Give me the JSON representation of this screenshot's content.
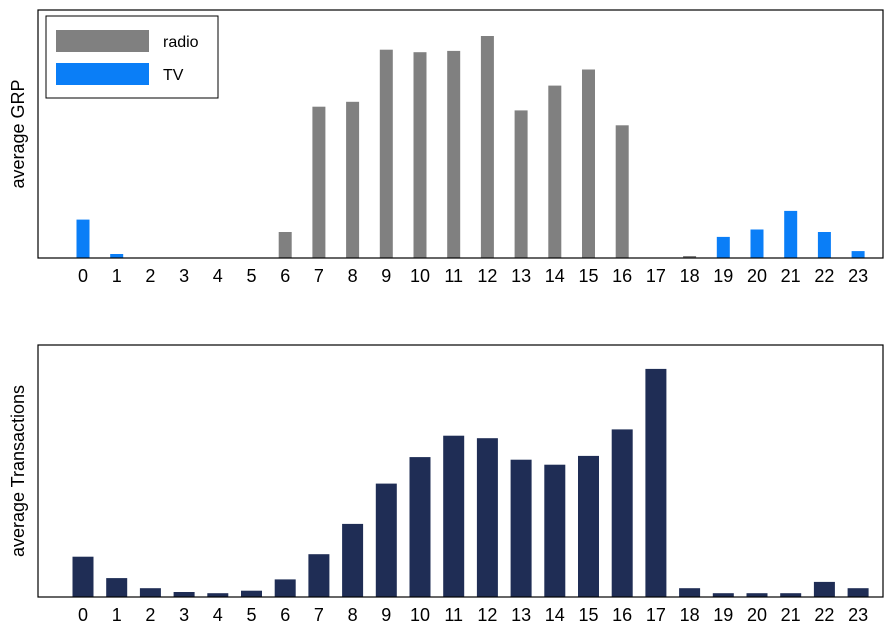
{
  "chart_data": [
    {
      "type": "bar",
      "title": "",
      "xlabel": "",
      "ylabel": "average GRP",
      "categories": [
        "0",
        "1",
        "2",
        "3",
        "4",
        "5",
        "6",
        "7",
        "8",
        "9",
        "10",
        "11",
        "12",
        "13",
        "14",
        "15",
        "16",
        "17",
        "18",
        "19",
        "20",
        "21",
        "22",
        "23"
      ],
      "ylim": [
        0,
        100
      ],
      "legend_position": "top-left",
      "grid": false,
      "series": [
        {
          "name": "radio",
          "color": "#808080",
          "values": [
            0,
            0,
            0,
            0,
            0,
            0,
            10.5,
            61,
            63,
            84,
            83,
            83.5,
            89.5,
            59.5,
            69.5,
            76,
            53.5,
            0,
            0.8,
            0,
            0,
            0,
            0,
            0
          ]
        },
        {
          "name": "TV",
          "color": "#0a7ef7",
          "values": [
            15.5,
            1.6,
            0,
            0,
            0,
            0,
            0,
            0,
            0,
            0,
            0,
            0,
            0,
            0,
            0,
            0,
            0,
            0,
            0,
            8.5,
            11.5,
            19,
            10.5,
            2.8
          ]
        }
      ]
    },
    {
      "type": "bar",
      "title": "",
      "xlabel": "",
      "ylabel": "average Transactions",
      "categories": [
        "0",
        "1",
        "2",
        "3",
        "4",
        "5",
        "6",
        "7",
        "8",
        "9",
        "10",
        "11",
        "12",
        "13",
        "14",
        "15",
        "16",
        "17",
        "18",
        "19",
        "20",
        "21",
        "22",
        "23"
      ],
      "ylim": [
        0,
        100
      ],
      "grid": false,
      "series": [
        {
          "name": "",
          "color": "#1f2d55",
          "values": [
            16,
            7.5,
            3.5,
            2,
            1.5,
            2.5,
            7,
            17,
            29,
            45,
            55.5,
            64,
            63,
            54.5,
            52.5,
            56,
            66.5,
            90.5,
            3.5,
            1.5,
            1.5,
            1.5,
            6,
            3.5
          ]
        }
      ]
    }
  ]
}
